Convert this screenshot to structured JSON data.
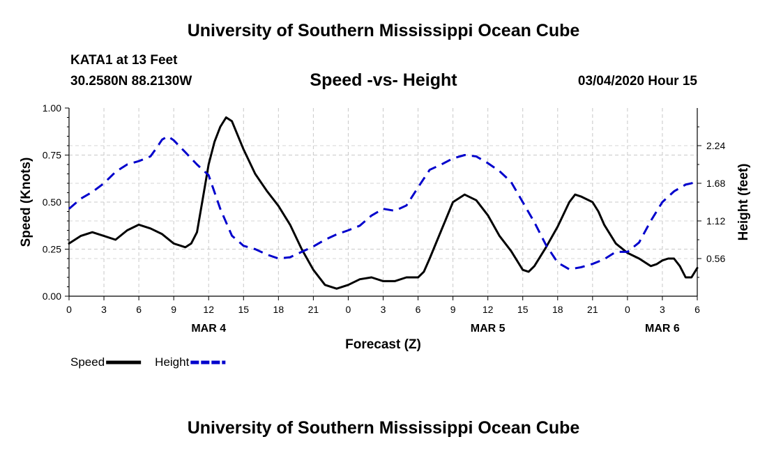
{
  "header": {
    "top_title": "University of Southern Mississippi Ocean Cube",
    "bottom_title": "University of Southern Mississippi Ocean Cube",
    "station": "KATA1 at 13 Feet",
    "coords": "30.2580N 88.2130W",
    "date": "03/04/2020 Hour 15"
  },
  "chart_data": {
    "type": "line",
    "title": "Speed -vs- Height",
    "xlabel": "Forecast (Z)",
    "ylabel": "Speed (Knots)",
    "y2label": "Height (feet)",
    "x_unit": "hours since 2020-03-04 00Z",
    "xlim": [
      0,
      54
    ],
    "ylim": [
      0,
      1.0
    ],
    "y2lim": [
      0,
      2.8
    ],
    "x_tick_values": [
      0,
      3,
      6,
      9,
      12,
      15,
      18,
      21,
      24,
      27,
      30,
      33,
      36,
      39,
      42,
      45,
      48,
      51,
      54
    ],
    "x_tick_labels": [
      "0",
      "3",
      "6",
      "9",
      "12",
      "15",
      "18",
      "21",
      "0",
      "3",
      "6",
      "9",
      "12",
      "15",
      "18",
      "21",
      "0",
      "3",
      "6"
    ],
    "y_tick_values": [
      0,
      0.25,
      0.5,
      0.75,
      1.0
    ],
    "y_tick_labels": [
      "0.00",
      "0.25",
      "0.50",
      "0.75",
      "1.00"
    ],
    "y2_tick_values": [
      0.56,
      1.12,
      1.68,
      2.24
    ],
    "y2_tick_labels": [
      "0.56",
      "1.12",
      "1.68",
      "2.24"
    ],
    "date_labels": [
      {
        "x": 12,
        "label": "MAR 4"
      },
      {
        "x": 36,
        "label": "MAR 5"
      },
      {
        "x": 51,
        "label": "MAR 6"
      }
    ],
    "grid": true,
    "series": [
      {
        "name": "Speed",
        "axis": "left",
        "color": "#000000",
        "style": "solid",
        "points": [
          [
            0,
            0.28
          ],
          [
            1,
            0.32
          ],
          [
            2,
            0.34
          ],
          [
            3,
            0.32
          ],
          [
            4,
            0.3
          ],
          [
            5,
            0.35
          ],
          [
            6,
            0.38
          ],
          [
            7,
            0.36
          ],
          [
            8,
            0.33
          ],
          [
            9,
            0.28
          ],
          [
            10,
            0.26
          ],
          [
            10.5,
            0.28
          ],
          [
            11,
            0.34
          ],
          [
            11.5,
            0.52
          ],
          [
            12,
            0.7
          ],
          [
            12.5,
            0.82
          ],
          [
            13,
            0.9
          ],
          [
            13.5,
            0.95
          ],
          [
            14,
            0.93
          ],
          [
            15,
            0.78
          ],
          [
            16,
            0.65
          ],
          [
            17,
            0.56
          ],
          [
            18,
            0.48
          ],
          [
            19,
            0.38
          ],
          [
            20,
            0.25
          ],
          [
            21,
            0.14
          ],
          [
            22,
            0.06
          ],
          [
            23,
            0.04
          ],
          [
            24,
            0.06
          ],
          [
            25,
            0.09
          ],
          [
            26,
            0.1
          ],
          [
            27,
            0.08
          ],
          [
            28,
            0.08
          ],
          [
            29,
            0.1
          ],
          [
            30,
            0.1
          ],
          [
            30.5,
            0.13
          ],
          [
            31,
            0.2
          ],
          [
            32,
            0.35
          ],
          [
            33,
            0.5
          ],
          [
            34,
            0.54
          ],
          [
            35,
            0.51
          ],
          [
            36,
            0.43
          ],
          [
            37,
            0.32
          ],
          [
            38,
            0.24
          ],
          [
            39,
            0.14
          ],
          [
            39.5,
            0.13
          ],
          [
            40,
            0.16
          ],
          [
            41,
            0.26
          ],
          [
            42,
            0.37
          ],
          [
            43,
            0.5
          ],
          [
            43.5,
            0.54
          ],
          [
            44,
            0.53
          ],
          [
            45,
            0.5
          ],
          [
            45.5,
            0.45
          ],
          [
            46,
            0.38
          ],
          [
            47,
            0.28
          ],
          [
            48,
            0.23
          ],
          [
            49,
            0.2
          ],
          [
            50,
            0.16
          ],
          [
            50.5,
            0.17
          ],
          [
            51,
            0.19
          ],
          [
            51.5,
            0.2
          ],
          [
            52,
            0.2
          ],
          [
            52.5,
            0.16
          ],
          [
            53,
            0.1
          ],
          [
            53.5,
            0.1
          ],
          [
            54,
            0.15
          ]
        ]
      },
      {
        "name": "Height",
        "axis": "right",
        "color": "#0000cc",
        "style": "dashed",
        "points": [
          [
            0,
            1.3
          ],
          [
            1,
            1.45
          ],
          [
            2,
            1.55
          ],
          [
            3,
            1.68
          ],
          [
            4,
            1.85
          ],
          [
            5,
            1.96
          ],
          [
            6,
            2.01
          ],
          [
            7,
            2.08
          ],
          [
            7.5,
            2.2
          ],
          [
            8,
            2.33
          ],
          [
            8.5,
            2.38
          ],
          [
            9,
            2.32
          ],
          [
            10,
            2.14
          ],
          [
            11,
            1.96
          ],
          [
            12,
            1.8
          ],
          [
            13,
            1.3
          ],
          [
            14,
            0.9
          ],
          [
            15,
            0.75
          ],
          [
            16,
            0.7
          ],
          [
            17,
            0.62
          ],
          [
            18,
            0.56
          ],
          [
            19,
            0.58
          ],
          [
            20,
            0.66
          ],
          [
            21,
            0.74
          ],
          [
            22,
            0.84
          ],
          [
            23,
            0.92
          ],
          [
            24,
            0.98
          ],
          [
            25,
            1.05
          ],
          [
            26,
            1.2
          ],
          [
            27,
            1.3
          ],
          [
            28,
            1.27
          ],
          [
            29,
            1.35
          ],
          [
            30,
            1.62
          ],
          [
            31,
            1.88
          ],
          [
            32,
            1.96
          ],
          [
            33,
            2.05
          ],
          [
            34,
            2.1
          ],
          [
            35,
            2.08
          ],
          [
            36,
            1.98
          ],
          [
            37,
            1.86
          ],
          [
            38,
            1.7
          ],
          [
            39,
            1.4
          ],
          [
            40,
            1.1
          ],
          [
            41,
            0.76
          ],
          [
            42,
            0.5
          ],
          [
            43,
            0.4
          ],
          [
            44,
            0.43
          ],
          [
            45,
            0.48
          ],
          [
            46,
            0.55
          ],
          [
            47,
            0.66
          ],
          [
            48,
            0.66
          ],
          [
            49,
            0.8
          ],
          [
            50,
            1.12
          ],
          [
            51,
            1.4
          ],
          [
            52,
            1.56
          ],
          [
            53,
            1.66
          ],
          [
            54,
            1.7
          ]
        ]
      }
    ],
    "legend": [
      {
        "name": "Speed",
        "color": "#000000",
        "style": "solid"
      },
      {
        "name": "Height",
        "color": "#0000cc",
        "style": "dashed"
      }
    ],
    "legend_position": "bottom-left"
  }
}
